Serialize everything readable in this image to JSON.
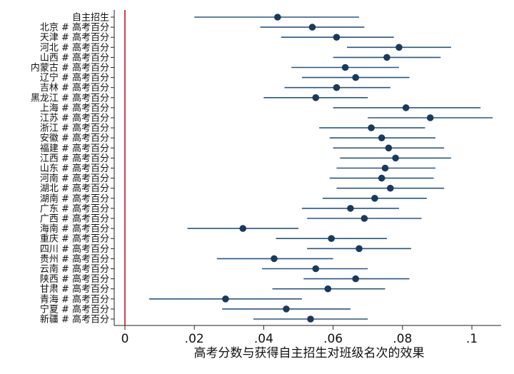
{
  "chart_data": {
    "type": "coefficient-plot",
    "xlabel": "高考分数与获得自主招生对班级名次的效果",
    "xlim": [
      -0.001,
      0.108
    ],
    "xticks": [
      {
        "value": 0,
        "label": "0"
      },
      {
        "value": 0.02,
        "label": ".02"
      },
      {
        "value": 0.04,
        "label": ".04"
      },
      {
        "value": 0.06,
        "label": ".06"
      },
      {
        "value": 0.08,
        "label": ".08"
      },
      {
        "value": 0.1,
        "label": ".1"
      }
    ],
    "reference_line": {
      "x": 0,
      "color": "#b2182b"
    },
    "point_color": "#1a3a5c",
    "ci_color": "#2a5682",
    "categories": [
      {
        "label": "自主招生",
        "estimate": 0.044,
        "ci": [
          0.02,
          0.0675
        ]
      },
      {
        "label": "北京 # 高考百分",
        "estimate": 0.054,
        "ci": [
          0.039,
          0.069
        ]
      },
      {
        "label": "天津 # 高考百分",
        "estimate": 0.061,
        "ci": [
          0.045,
          0.0775
        ]
      },
      {
        "label": "河北 # 高考百分",
        "estimate": 0.079,
        "ci": [
          0.064,
          0.094
        ]
      },
      {
        "label": "山西 # 高考百分",
        "estimate": 0.0755,
        "ci": [
          0.06,
          0.091
        ]
      },
      {
        "label": "内蒙古 # 高考百分",
        "estimate": 0.0635,
        "ci": [
          0.048,
          0.079
        ]
      },
      {
        "label": "辽宁 # 高考百分",
        "estimate": 0.0665,
        "ci": [
          0.051,
          0.082
        ]
      },
      {
        "label": "吉林 # 高考百分",
        "estimate": 0.061,
        "ci": [
          0.046,
          0.0765
        ]
      },
      {
        "label": "黑龙江 # 高考百分",
        "estimate": 0.055,
        "ci": [
          0.04,
          0.07
        ]
      },
      {
        "label": "上海 # 高考百分",
        "estimate": 0.081,
        "ci": [
          0.06,
          0.1025
        ]
      },
      {
        "label": "江苏 # 高考百分",
        "estimate": 0.088,
        "ci": [
          0.07,
          0.106
        ]
      },
      {
        "label": "浙江 # 高考百分",
        "estimate": 0.071,
        "ci": [
          0.056,
          0.0865
        ]
      },
      {
        "label": "安徽 # 高考百分",
        "estimate": 0.074,
        "ci": [
          0.059,
          0.0895
        ]
      },
      {
        "label": "福建 # 高考百分",
        "estimate": 0.076,
        "ci": [
          0.06,
          0.092
        ]
      },
      {
        "label": "江西 # 高考百分",
        "estimate": 0.078,
        "ci": [
          0.062,
          0.094
        ]
      },
      {
        "label": "山东 # 高考百分",
        "estimate": 0.075,
        "ci": [
          0.061,
          0.0895
        ]
      },
      {
        "label": "河南 # 高考百分",
        "estimate": 0.074,
        "ci": [
          0.059,
          0.089
        ]
      },
      {
        "label": "湖北 # 高考百分",
        "estimate": 0.0765,
        "ci": [
          0.061,
          0.092
        ]
      },
      {
        "label": "湖南 # 高考百分",
        "estimate": 0.072,
        "ci": [
          0.057,
          0.087
        ]
      },
      {
        "label": "广东 # 高考百分",
        "estimate": 0.065,
        "ci": [
          0.051,
          0.079
        ]
      },
      {
        "label": "广西 # 高考百分",
        "estimate": 0.069,
        "ci": [
          0.0525,
          0.0855
        ]
      },
      {
        "label": "海南 # 高考百分",
        "estimate": 0.034,
        "ci": [
          0.018,
          0.05
        ]
      },
      {
        "label": "重庆 # 高考百分",
        "estimate": 0.0595,
        "ci": [
          0.0435,
          0.0755
        ]
      },
      {
        "label": "四川 # 高考百分",
        "estimate": 0.0675,
        "ci": [
          0.0525,
          0.0825
        ]
      },
      {
        "label": "贵州 # 高考百分",
        "estimate": 0.043,
        "ci": [
          0.0265,
          0.06
        ]
      },
      {
        "label": "云南 # 高考百分",
        "estimate": 0.055,
        "ci": [
          0.0395,
          0.07
        ]
      },
      {
        "label": "陕西 # 高考百分",
        "estimate": 0.0665,
        "ci": [
          0.0515,
          0.082
        ]
      },
      {
        "label": "甘肃 # 高考百分",
        "estimate": 0.0585,
        "ci": [
          0.0425,
          0.075
        ]
      },
      {
        "label": "青海 # 高考百分",
        "estimate": 0.029,
        "ci": [
          0.007,
          0.051
        ]
      },
      {
        "label": "宁夏 # 高考百分",
        "estimate": 0.0465,
        "ci": [
          0.028,
          0.065
        ]
      },
      {
        "label": "新疆 # 高考百分",
        "estimate": 0.0535,
        "ci": [
          0.037,
          0.07
        ]
      }
    ]
  }
}
